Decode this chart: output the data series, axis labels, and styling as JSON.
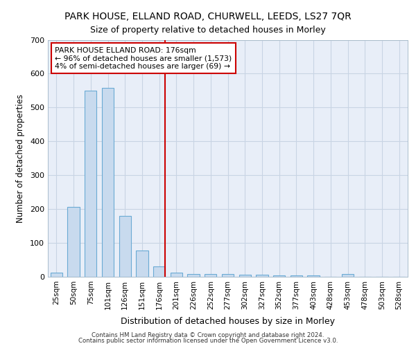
{
  "title": "PARK HOUSE, ELLAND ROAD, CHURWELL, LEEDS, LS27 7QR",
  "subtitle": "Size of property relative to detached houses in Morley",
  "xlabel": "Distribution of detached houses by size in Morley",
  "ylabel": "Number of detached properties",
  "categories": [
    "25sqm",
    "50sqm",
    "75sqm",
    "101sqm",
    "126sqm",
    "151sqm",
    "176sqm",
    "201sqm",
    "226sqm",
    "252sqm",
    "277sqm",
    "302sqm",
    "327sqm",
    "352sqm",
    "377sqm",
    "403sqm",
    "428sqm",
    "453sqm",
    "478sqm",
    "503sqm",
    "528sqm"
  ],
  "values": [
    12,
    207,
    550,
    557,
    180,
    78,
    30,
    13,
    8,
    8,
    8,
    7,
    6,
    5,
    5,
    5,
    0,
    8,
    0,
    0,
    0
  ],
  "bar_color": "#c8daee",
  "bar_edge_color": "#6aaad4",
  "highlight_x": "176sqm",
  "highlight_line_color": "#cc0000",
  "annotation_text": "PARK HOUSE ELLAND ROAD: 176sqm\n← 96% of detached houses are smaller (1,573)\n4% of semi-detached houses are larger (69) →",
  "annotation_box_color": "#cc0000",
  "background_color": "#ffffff",
  "plot_bg_color": "#e8eef8",
  "grid_color": "#c8d4e4",
  "ylim": [
    0,
    700
  ],
  "yticks": [
    0,
    100,
    200,
    300,
    400,
    500,
    600,
    700
  ],
  "footer_line1": "Contains HM Land Registry data © Crown copyright and database right 2024.",
  "footer_line2": "Contains public sector information licensed under the Open Government Licence v3.0."
}
